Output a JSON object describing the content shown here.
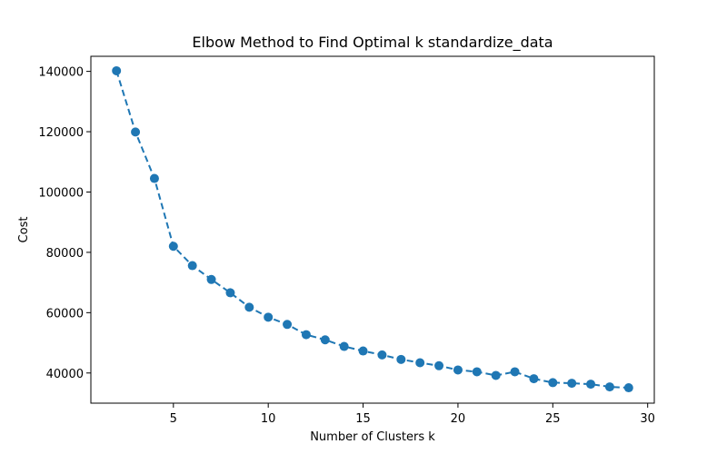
{
  "chart_data": {
    "type": "line",
    "title": "Elbow Method to Find Optimal k standardize_data",
    "xlabel": "Number of Clusters k",
    "ylabel": "Cost",
    "xlim": [
      0.65,
      30.35
    ],
    "ylim": [
      30000,
      145000
    ],
    "xticks": [
      5,
      10,
      15,
      20,
      25,
      30
    ],
    "yticks": [
      40000,
      60000,
      80000,
      100000,
      120000,
      140000
    ],
    "grid": false,
    "series": [
      {
        "color": "#1f77b4",
        "line_style": "dashed",
        "marker": "circle",
        "x": [
          2,
          3,
          4,
          5,
          6,
          7,
          8,
          9,
          10,
          11,
          12,
          13,
          14,
          15,
          16,
          17,
          18,
          19,
          20,
          21,
          22,
          23,
          24,
          25,
          26,
          27,
          28,
          29
        ],
        "y": [
          140200,
          119900,
          104500,
          82000,
          75600,
          71000,
          66600,
          61800,
          58500,
          56100,
          52700,
          51000,
          48800,
          47300,
          46000,
          44500,
          43400,
          42400,
          41000,
          40400,
          39200,
          40400,
          38100,
          36800,
          36600,
          36300,
          35400,
          35100
        ]
      }
    ]
  }
}
